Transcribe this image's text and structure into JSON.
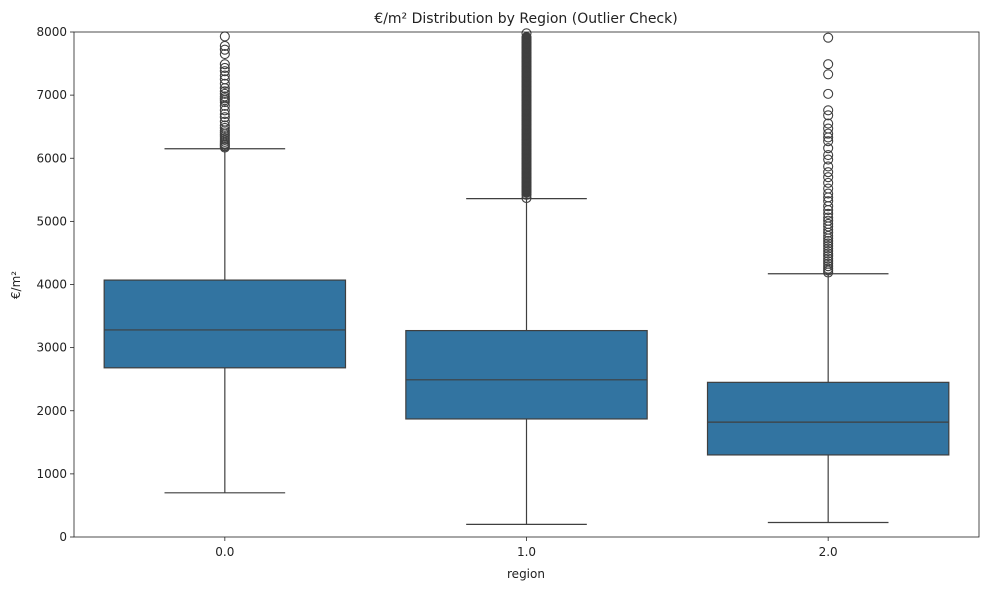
{
  "chart_data": {
    "type": "box",
    "title": "€/m² Distribution by Region (Outlier Check)",
    "xlabel": "region",
    "ylabel": "€/m²",
    "ylim": [
      0,
      8000
    ],
    "y_ticks": [
      "0",
      "1000",
      "2000",
      "3000",
      "4000",
      "5000",
      "6000",
      "7000",
      "8000"
    ],
    "categories": [
      "0.0",
      "1.0",
      "2.0"
    ],
    "grid": false,
    "colors": {
      "box_fill": "#3274a1",
      "line": "#3f3f3f"
    },
    "boxes": [
      {
        "category": "0.0",
        "whisker_low": 700,
        "q1": 2680,
        "median": 3280,
        "q3": 4070,
        "whisker_high": 6150,
        "outliers": [
          6170,
          6190,
          6210,
          6230,
          6260,
          6290,
          6320,
          6350,
          6380,
          6410,
          6440,
          6480,
          6520,
          6580,
          6650,
          6700,
          6760,
          6830,
          6890,
          6920,
          6950,
          6980,
          7020,
          7060,
          7110,
          7180,
          7250,
          7310,
          7380,
          7430,
          7490,
          7650,
          7720,
          7780,
          7930
        ]
      },
      {
        "category": "1.0",
        "whisker_low": 200,
        "q1": 1870,
        "median": 2490,
        "q3": 3270,
        "whisker_high": 5360,
        "outlier_band": [
          5370,
          8000
        ],
        "outliers": [
          5370,
          5420,
          5480,
          5550,
          5620,
          5690,
          5760,
          5840,
          5910,
          5990,
          6070,
          6140,
          6220,
          6300,
          6370,
          6450,
          6530,
          6600,
          6680,
          6760,
          6830,
          6910,
          6990,
          7060,
          7140,
          7220,
          7300,
          7370,
          7450,
          7530,
          7600,
          7680,
          7760,
          7830,
          7910,
          7980
        ]
      },
      {
        "category": "2.0",
        "whisker_low": 230,
        "q1": 1300,
        "median": 1820,
        "q3": 2450,
        "whisker_high": 4170,
        "outliers": [
          4190,
          4220,
          4250,
          4290,
          4330,
          4370,
          4410,
          4450,
          4490,
          4530,
          4570,
          4610,
          4650,
          4690,
          4730,
          4770,
          4820,
          4870,
          4920,
          4960,
          5010,
          5060,
          5120,
          5180,
          5240,
          5320,
          5380,
          5440,
          5520,
          5610,
          5700,
          5780,
          5870,
          5980,
          6050,
          6160,
          6270,
          6330,
          6390,
          6470,
          6550,
          6680,
          6760,
          7020,
          7330,
          7490,
          7910
        ]
      }
    ]
  }
}
